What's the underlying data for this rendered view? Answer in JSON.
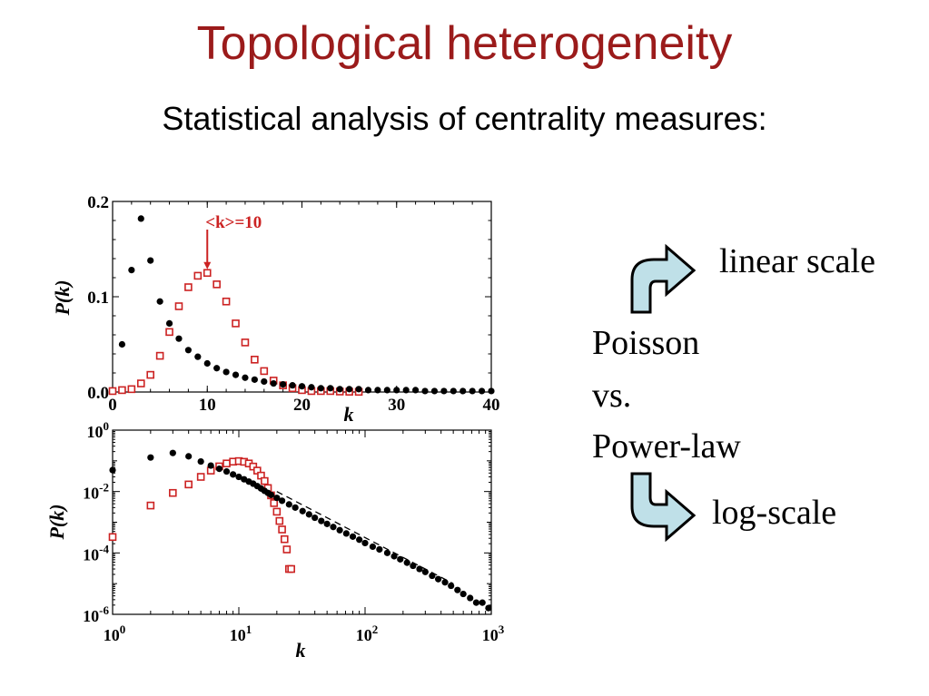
{
  "slide": {
    "title": "Topological heterogeneity",
    "subtitle": "Statistical analysis of centrality measures:",
    "label_linear": "linear scale",
    "label_log": "log-scale",
    "comparison": [
      "Poisson",
      "vs.",
      "Power-law"
    ]
  },
  "colors": {
    "title": "#9b1b1b",
    "poisson": "#cc2222",
    "powerlaw": "#000000",
    "arrow_fill": "#bfe0e8"
  },
  "icons": [
    "curved-arrow-up-right-icon",
    "curved-arrow-down-right-icon"
  ],
  "chart_data": [
    {
      "type": "scatter",
      "scale": "linear",
      "xlabel": "k",
      "ylabel": "P(k)",
      "xlim": [
        0,
        40
      ],
      "ylim": [
        0,
        0.2
      ],
      "x_ticks": [
        "0",
        "10",
        "20",
        "30",
        "40"
      ],
      "y_ticks": [
        "0.0",
        "0.1",
        "0.2"
      ],
      "annotation": {
        "text": "<k>=10",
        "x": 10,
        "y": 0.125
      },
      "series": [
        {
          "marker": "filled-circle",
          "color": "#000000",
          "points": [
            [
              1,
              0.05
            ],
            [
              2,
              0.128
            ],
            [
              3,
              0.182
            ],
            [
              4,
              0.138
            ],
            [
              5,
              0.095
            ],
            [
              6,
              0.072
            ],
            [
              7,
              0.056
            ],
            [
              8,
              0.044
            ],
            [
              9,
              0.037
            ],
            [
              10,
              0.03
            ],
            [
              11,
              0.025
            ],
            [
              12,
              0.021
            ],
            [
              13,
              0.018
            ],
            [
              14,
              0.015
            ],
            [
              15,
              0.013
            ],
            [
              16,
              0.011
            ],
            [
              17,
              0.009
            ],
            [
              18,
              0.008
            ],
            [
              19,
              0.007
            ],
            [
              20,
              0.006
            ],
            [
              21,
              0.005
            ],
            [
              22,
              0.004
            ],
            [
              23,
              0.004
            ],
            [
              24,
              0.003
            ],
            [
              25,
              0.003
            ],
            [
              26,
              0.003
            ],
            [
              27,
              0.002
            ],
            [
              28,
              0.002
            ],
            [
              29,
              0.002
            ],
            [
              30,
              0.002
            ],
            [
              31,
              0.002
            ],
            [
              32,
              0.002
            ],
            [
              33,
              0.001
            ],
            [
              34,
              0.001
            ],
            [
              35,
              0.001
            ],
            [
              36,
              0.001
            ],
            [
              37,
              0.001
            ],
            [
              38,
              0.001
            ],
            [
              39,
              0.001
            ],
            [
              40,
              0.001
            ]
          ]
        },
        {
          "marker": "open-square",
          "color": "#cc2222",
          "points": [
            [
              0,
              0.001
            ],
            [
              1,
              0.002
            ],
            [
              2,
              0.003
            ],
            [
              3,
              0.009
            ],
            [
              4,
              0.018
            ],
            [
              5,
              0.038
            ],
            [
              6,
              0.063
            ],
            [
              7,
              0.09
            ],
            [
              8,
              0.11
            ],
            [
              9,
              0.122
            ],
            [
              10,
              0.125
            ],
            [
              11,
              0.113
            ],
            [
              12,
              0.095
            ],
            [
              13,
              0.072
            ],
            [
              14,
              0.052
            ],
            [
              15,
              0.034
            ],
            [
              16,
              0.022
            ],
            [
              17,
              0.012
            ],
            [
              18,
              0.007
            ],
            [
              19,
              0.004
            ],
            [
              20,
              0.002
            ],
            [
              21,
              0.001
            ],
            [
              22,
              0.001
            ],
            [
              23,
              0.001
            ],
            [
              24,
              0.0005
            ],
            [
              25,
              0.0003
            ],
            [
              26,
              0.0002
            ]
          ]
        }
      ]
    },
    {
      "type": "scatter",
      "scale": "log-log",
      "xlabel": "k",
      "ylabel": "P(k)",
      "xlim": [
        1,
        1000
      ],
      "ylim": [
        1e-06,
        1
      ],
      "x_ticks": [
        "10^0",
        "10^1",
        "10^2",
        "10^3"
      ],
      "y_ticks": [
        "10^0",
        "10^-2",
        "10^-4",
        "10^-6"
      ],
      "series": [
        {
          "marker": "filled-circle",
          "color": "#000000",
          "points": [
            [
              1,
              0.05
            ],
            [
              2,
              0.128
            ],
            [
              3,
              0.18
            ],
            [
              4,
              0.14
            ],
            [
              5,
              0.095
            ],
            [
              6,
              0.07
            ],
            [
              7,
              0.055
            ],
            [
              8,
              0.045
            ],
            [
              9,
              0.036
            ],
            [
              10,
              0.03
            ],
            [
              11,
              0.025
            ],
            [
              12,
              0.021
            ],
            [
              13,
              0.018
            ],
            [
              14,
              0.015
            ],
            [
              15,
              0.0125
            ],
            [
              16,
              0.0105
            ],
            [
              17,
              0.009
            ],
            [
              18,
              0.0078
            ],
            [
              20,
              0.0062
            ],
            [
              22,
              0.005
            ],
            [
              25,
              0.0038
            ],
            [
              28,
              0.003
            ],
            [
              32,
              0.0023
            ],
            [
              36,
              0.0018
            ],
            [
              40,
              0.0014
            ],
            [
              45,
              0.0011
            ],
            [
              50,
              0.00088
            ],
            [
              56,
              0.0007
            ],
            [
              63,
              0.00055
            ],
            [
              71,
              0.00043
            ],
            [
              80,
              0.00034
            ],
            [
              90,
              0.00027
            ],
            [
              100,
              0.00021
            ],
            [
              115,
              0.00016
            ],
            [
              130,
              0.00013
            ],
            [
              150,
              0.0001
            ],
            [
              170,
              7.8e-05
            ],
            [
              190,
              6.2e-05
            ],
            [
              215,
              4.8e-05
            ],
            [
              240,
              3.8e-05
            ],
            [
              270,
              3e-05
            ],
            [
              300,
              2.4e-05
            ],
            [
              340,
              1.8e-05
            ],
            [
              380,
              1.4e-05
            ],
            [
              430,
              1.1e-05
            ],
            [
              480,
              8.5e-06
            ],
            [
              540,
              6.2e-06
            ],
            [
              600,
              4.6e-06
            ],
            [
              680,
              3.4e-06
            ],
            [
              760,
              2.4e-06
            ],
            [
              850,
              2.4e-06
            ],
            [
              950,
              1.6e-06
            ]
          ]
        },
        {
          "marker": "open-square",
          "color": "#cc2222",
          "points": [
            [
              1,
              0.00033
            ],
            [
              2,
              0.0035
            ],
            [
              3,
              0.009
            ],
            [
              4,
              0.017
            ],
            [
              5,
              0.03
            ],
            [
              6,
              0.048
            ],
            [
              7,
              0.066
            ],
            [
              8,
              0.082
            ],
            [
              9,
              0.094
            ],
            [
              10,
              0.098
            ],
            [
              11,
              0.093
            ],
            [
              12,
              0.082
            ],
            [
              13,
              0.065
            ],
            [
              14,
              0.048
            ],
            [
              15,
              0.033
            ],
            [
              16,
              0.022
            ],
            [
              17,
              0.013
            ],
            [
              18,
              0.0075
            ],
            [
              19,
              0.0042
            ],
            [
              20,
              0.0022
            ],
            [
              21,
              0.0011
            ],
            [
              22,
              0.00058
            ],
            [
              23,
              0.00028
            ],
            [
              24,
              0.00013
            ],
            [
              25,
              3e-05
            ],
            [
              26,
              3e-05
            ]
          ]
        }
      ],
      "reference_line": {
        "style": "dashed",
        "from": [
          20,
          0.01
        ],
        "to": [
          500,
          1e-05
        ]
      }
    }
  ]
}
